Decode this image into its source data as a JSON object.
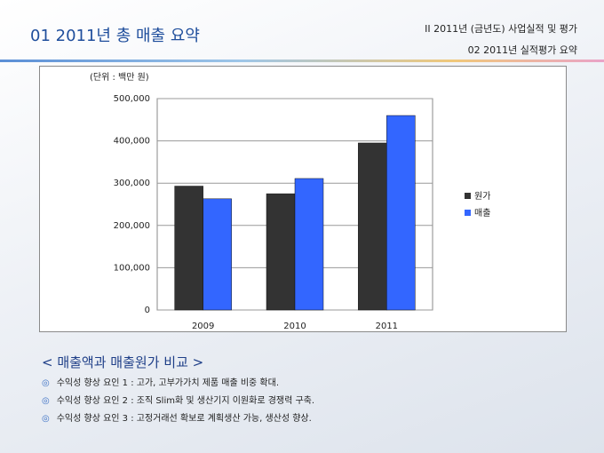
{
  "header": {
    "title": "01  2011년 총 매출 요약",
    "section": "II  2011년 (금년도) 사업실적 및 평가",
    "subsection": "02  2011년 실적평가 요약"
  },
  "chart_data": {
    "type": "bar",
    "unit_label": "(단위 : 백만 원)",
    "categories": [
      "2009",
      "2010",
      "2011"
    ],
    "series": [
      {
        "name": "원가",
        "color": "#333333",
        "values": [
          293000,
          275000,
          395000
        ]
      },
      {
        "name": "매출",
        "color": "#3366ff",
        "values": [
          263000,
          311000,
          460000
        ]
      }
    ],
    "ylim": [
      0,
      500000
    ],
    "yticks": [
      0,
      {
        "value": 100000,
        "label": "100,000"
      },
      {
        "value": 200000,
        "label": "200,000"
      },
      {
        "value": 300000,
        "label": "300,000"
      },
      {
        "value": 400000,
        "label": "400,000"
      },
      {
        "value": 500000,
        "label": "500,000"
      }
    ],
    "grid": true,
    "legend": "right"
  },
  "notes": {
    "heading": "< 매출액과 매출원가 비교 >",
    "bullet_marker": "◎",
    "items": [
      "수익성 향상 요인 1 : 고가, 고부가가치 제품 매출 비중 확대.",
      "수익성 향상 요인 2 : 조직 Slim화 및 생산기지 이원화로 경쟁력 구축.",
      "수익성 향상 요인 3 : 고정거래선 확보로 계획생산 가능, 생산성 향상."
    ]
  }
}
